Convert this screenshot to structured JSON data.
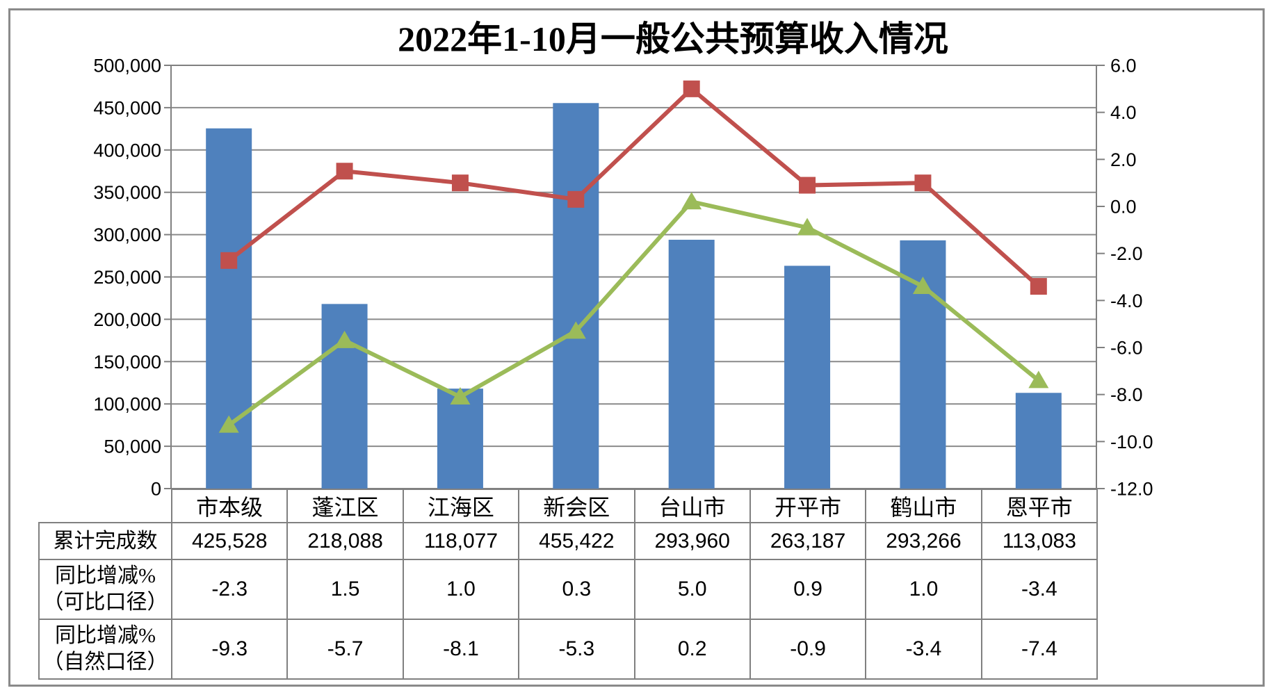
{
  "chart_data": {
    "type": "combo",
    "title": "2022年1-10月一般公共预算收入情况",
    "categories": [
      "市本级",
      "蓬江区",
      "江海区",
      "新会区",
      "台山市",
      "开平市",
      "鹤山市",
      "恩平市"
    ],
    "series": [
      {
        "name": "累计完成数",
        "type": "bar",
        "axis": "left",
        "color": "#4F81BD",
        "values": [
          425528,
          218088,
          118077,
          455422,
          293960,
          263187,
          293266,
          113083
        ]
      },
      {
        "name": "同比增减%（可比口径）",
        "type": "line",
        "marker": "square",
        "axis": "right",
        "color": "#C0504D",
        "values": [
          -2.3,
          1.5,
          1.0,
          0.3,
          5.0,
          0.9,
          1.0,
          -3.4
        ]
      },
      {
        "name": "同比增减%（自然口径）",
        "type": "line",
        "marker": "triangle",
        "axis": "right",
        "color": "#9BBB59",
        "values": [
          -9.3,
          -5.7,
          -8.1,
          -5.3,
          0.2,
          -0.9,
          -3.4,
          -7.4
        ]
      }
    ],
    "left_axis": {
      "min": 0,
      "max": 500000,
      "step": 50000,
      "labels": [
        "500,000",
        "450,000",
        "400,000",
        "350,000",
        "300,000",
        "250,000",
        "200,000",
        "150,000",
        "100,000",
        "50,000",
        "0"
      ]
    },
    "right_axis": {
      "min": -12.0,
      "max": 6.0,
      "step": 2.0,
      "labels": [
        "6.0",
        "4.0",
        "2.0",
        "0.0",
        "-2.0",
        "-4.0",
        "-6.0",
        "-8.0",
        "-10.0",
        "-12.0"
      ]
    },
    "grid": true,
    "legend": "none"
  },
  "table": {
    "row_headers": [
      {
        "lines": [
          "累计完成数"
        ]
      },
      {
        "lines": [
          "同比增减%",
          "（可比口径）"
        ]
      },
      {
        "lines": [
          "同比增减%",
          "（自然口径）"
        ]
      }
    ],
    "rows": [
      [
        "425,528",
        "218,088",
        "118,077",
        "455,422",
        "293,960",
        "263,187",
        "293,266",
        "113,083"
      ],
      [
        "-2.3",
        "1.5",
        "1.0",
        "0.3",
        "5.0",
        "0.9",
        "1.0",
        "-3.4"
      ],
      [
        "-9.3",
        "-5.7",
        "-8.1",
        "-5.3",
        "0.2",
        "-0.9",
        "-3.4",
        "-7.4"
      ]
    ]
  },
  "colors": {
    "bar": "#4F81BD",
    "line_comparable": "#C0504D",
    "line_natural": "#9BBB59",
    "grid": "#8a8a8a",
    "axis": "#808080",
    "text": "#000000",
    "background": "#ffffff"
  }
}
